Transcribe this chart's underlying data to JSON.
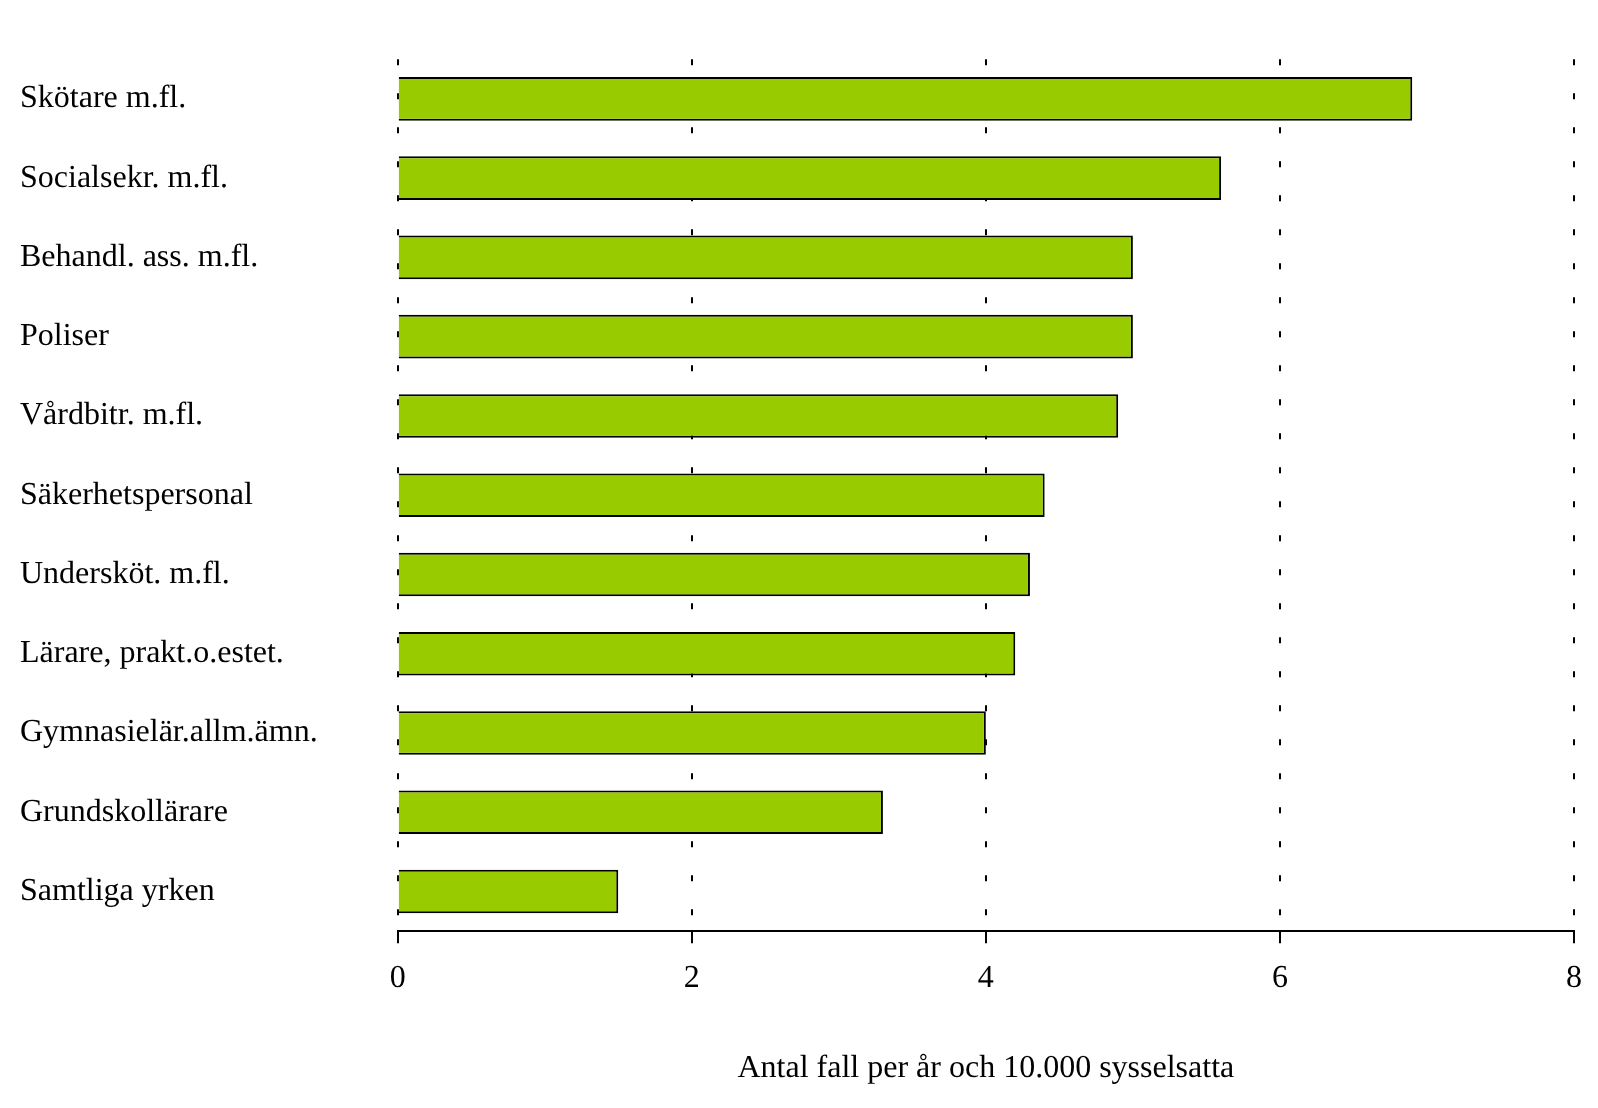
{
  "chart_data": {
    "type": "bar",
    "orientation": "horizontal",
    "xlabel": "Antal fall per år och 10.000 sysselsatta",
    "categories": [
      "Skötare m.fl.",
      "Socialsekr. m.fl.",
      "Behandl. ass. m.fl.",
      "Poliser",
      "Vårdbitr. m.fl.",
      "Säkerhetspersonal",
      "Undersköt. m.fl.",
      "Lärare, prakt.o.estet.",
      "Gymnasielär.allm.ämn.",
      "Grundskollärare",
      "Samtliga yrken"
    ],
    "values": [
      6.9,
      5.6,
      5.0,
      5.0,
      4.9,
      4.4,
      4.3,
      4.2,
      4.0,
      3.3,
      1.5
    ],
    "color": "#99cc00",
    "xlim": [
      0,
      8
    ],
    "xticks": [
      0,
      2,
      4,
      6,
      8
    ],
    "grid": "x",
    "legend": false
  }
}
